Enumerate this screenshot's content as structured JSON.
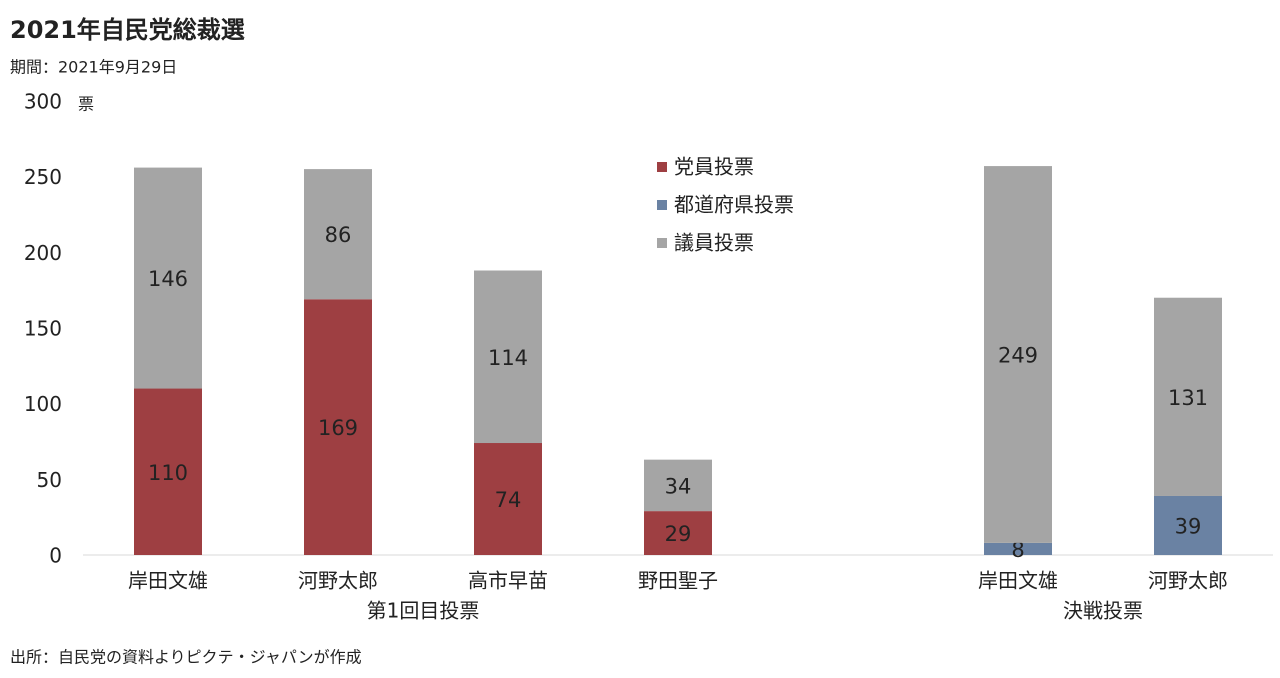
{
  "chart_data": {
    "type": "stacked_bar",
    "title": "2021年自民党総裁選",
    "subtitle": "期間：2021年9月29日",
    "source": "出所：自民党の資料よりピクテ・ジャパンが作成",
    "y_unit": "票",
    "categories": [
      "岸田文雄",
      "河野太郎",
      "高市早苗",
      "野田聖子",
      null,
      "岸田文雄",
      "河野太郎"
    ],
    "category_groups": [
      "第1回目投票",
      "決戦投票"
    ],
    "series": [
      {
        "name": "党員投票",
        "color": "#9e3f42",
        "values": [
          110,
          169,
          74,
          29,
          null,
          null,
          null
        ]
      },
      {
        "name": "都道府県投票",
        "color": "#6a82a3",
        "values": [
          null,
          null,
          null,
          null,
          null,
          8,
          39
        ]
      },
      {
        "name": "議員投票",
        "color": "#a5a5a5",
        "values": [
          146,
          86,
          114,
          34,
          null,
          249,
          131
        ]
      }
    ],
    "ylim": [
      0,
      300
    ],
    "yticks": [
      0,
      50,
      100,
      150,
      200,
      250,
      300
    ],
    "grid": false
  }
}
